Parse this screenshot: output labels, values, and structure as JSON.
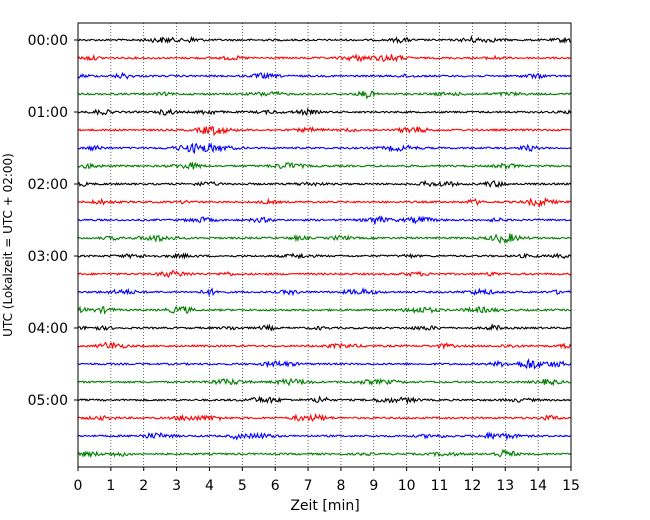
{
  "chart_data": {
    "type": "line",
    "subtype": "helicorder",
    "xlabel": "Zeit  [min]",
    "ylabel": "UTC (Lokalzeit = UTC + 02:00)",
    "xlim": [
      0,
      15
    ],
    "x_ticks": [
      "0",
      "1",
      "2",
      "3",
      "4",
      "5",
      "6",
      "7",
      "8",
      "9",
      "10",
      "11",
      "12",
      "13",
      "14",
      "15"
    ],
    "y_tick_labels": [
      "00:00",
      "01:00",
      "02:00",
      "03:00",
      "04:00",
      "05:00"
    ],
    "traces_per_hour": 4,
    "minutes_per_trace": 15,
    "trace_count": 24,
    "trace_colors": [
      "#000000",
      "#ff0000",
      "#0000ff",
      "#008000"
    ],
    "x_grid": "dotted",
    "y_grid": false
  }
}
